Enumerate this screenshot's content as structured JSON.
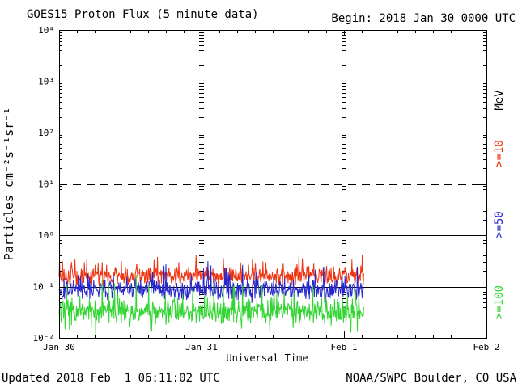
{
  "header": {
    "title": "GOES15 Proton Flux (5 minute data)",
    "begin_label": "Begin: 2018 Jan 30 0000 UTC"
  },
  "footer": {
    "updated": "Updated 2018 Feb  1 06:11:02 UTC",
    "source": "NOAA/SWPC Boulder, CO USA"
  },
  "chart_data": {
    "type": "line",
    "title": "GOES15 Proton Flux (5 minute data)",
    "xlabel": "Universal Time",
    "ylabel": "Particles cm⁻²s⁻¹sr⁻¹",
    "x_tick_labels": [
      "Jan 30",
      "Jan 31",
      "Feb 1",
      "Feb 2"
    ],
    "x_tick_days": [
      0,
      1,
      2,
      3
    ],
    "y_tick_labels": [
      "10⁴",
      "10³",
      "10²",
      "10¹",
      "10⁰",
      "10⁻¹",
      "10⁻²"
    ],
    "y_tick_exponents": [
      4,
      3,
      2,
      1,
      0,
      -1,
      -2
    ],
    "y_log_range": [
      -2,
      4
    ],
    "x_range_days": 3,
    "cadence_minutes": 5,
    "data_end_day": 2.14,
    "minor_x_tick_hours": 3,
    "gridlines": [
      {
        "log": 3,
        "style": "solid"
      },
      {
        "log": 2,
        "style": "solid"
      },
      {
        "log": 1,
        "style": "dashed"
      },
      {
        "log": 0,
        "style": "solid"
      },
      {
        "log": -1,
        "style": "solid"
      }
    ],
    "day_gridlines_days": [
      1,
      2
    ],
    "axis_color": "#000000",
    "legend_position": "right",
    "legend_title": "MeV",
    "legend_title_color": "#000000",
    "series": [
      {
        "name": ">=10",
        "color": "#ee3311",
        "approx_mean_flux": 0.16,
        "approx_flux_range": [
          0.09,
          0.45
        ],
        "log_mean": -0.8,
        "log_spread": 0.26,
        "spike_prob": 0.1,
        "spike_amp": 0.4,
        "dip_prob": 0.0,
        "dip_amp": 0.0,
        "seed": 11
      },
      {
        "name": ">=50",
        "color": "#2626cc",
        "approx_mean_flux": 0.09,
        "approx_flux_range": [
          0.04,
          0.22
        ],
        "log_mean": -1.06,
        "log_spread": 0.26,
        "spike_prob": 0.1,
        "spike_amp": 0.45,
        "dip_prob": 0.05,
        "dip_amp": 0.2,
        "seed": 22
      },
      {
        "name": ">=100",
        "color": "#33d433",
        "approx_mean_flux": 0.034,
        "approx_flux_range": [
          0.015,
          0.1
        ],
        "log_mean": -1.48,
        "log_spread": 0.34,
        "spike_prob": 0.1,
        "spike_amp": 0.55,
        "dip_prob": 0.08,
        "dip_amp": 0.3,
        "seed": 33
      }
    ]
  }
}
